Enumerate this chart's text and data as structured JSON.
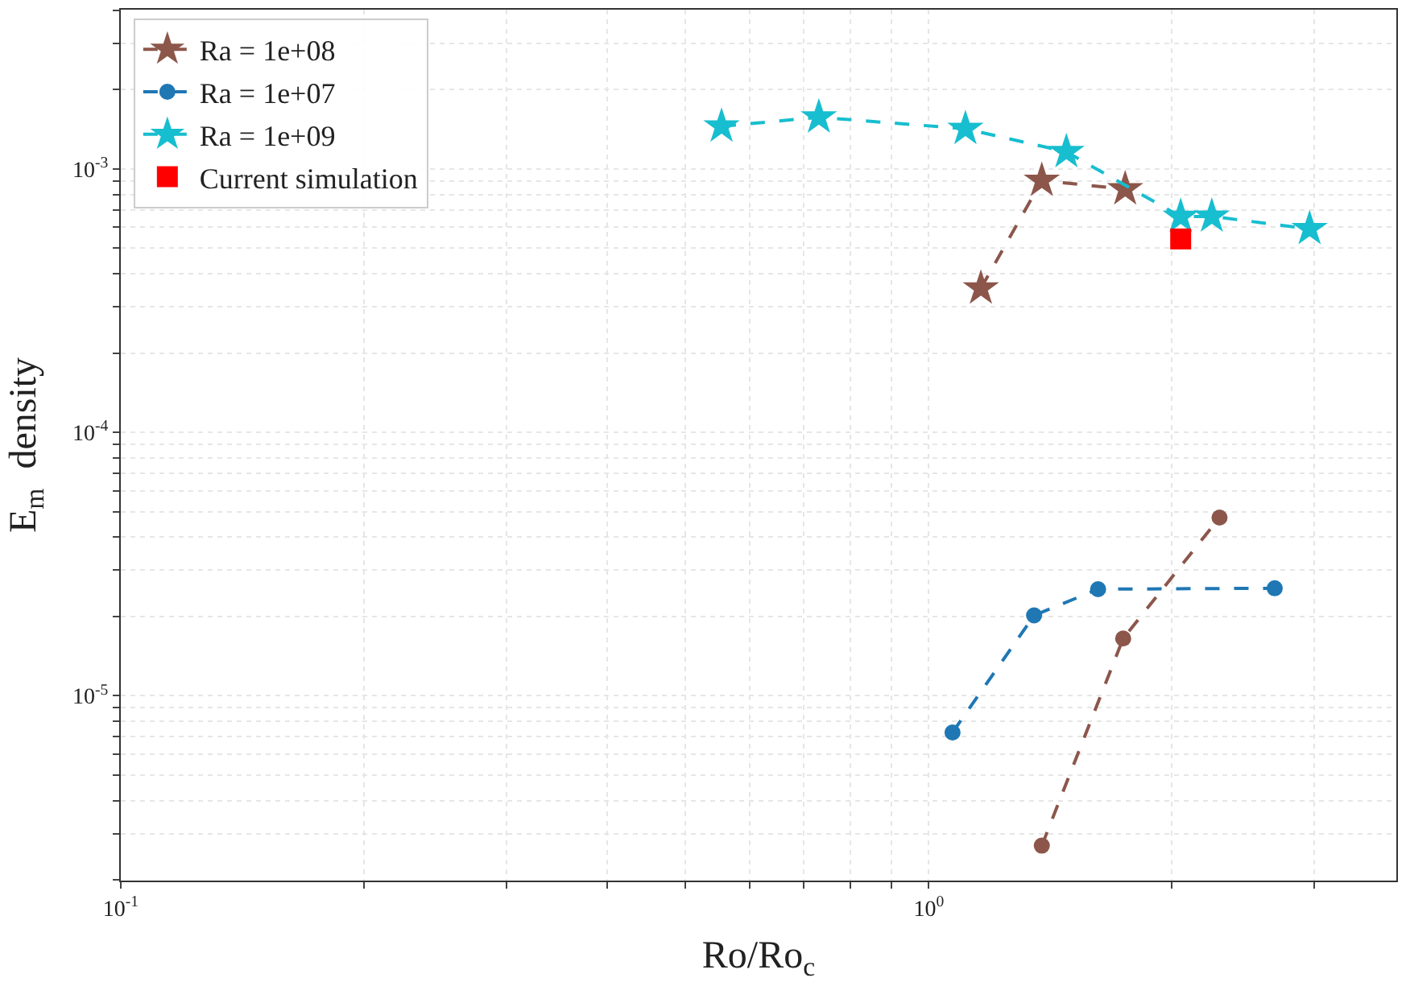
{
  "chart_data": {
    "type": "line",
    "xlabel": "Ro/Ro$_{c}$",
    "ylabel": "E$_{m}$  density",
    "log": "xy",
    "grid": true,
    "legend": "top left",
    "xlim": [
      0.1,
      3.79
    ],
    "ylim": [
      1.99e-06,
      0.00402
    ],
    "xticks": [
      {
        "value": 0.1,
        "label": "10$^{-1}$"
      },
      {
        "value": 0.2,
        "label": null
      },
      {
        "value": 0.3,
        "label": null
      },
      {
        "value": 0.4,
        "label": null
      },
      {
        "value": 0.5,
        "label": null
      },
      {
        "value": 0.6,
        "label": null
      },
      {
        "value": 0.7,
        "label": null
      },
      {
        "value": 0.8,
        "label": null
      },
      {
        "value": 0.9,
        "label": null
      },
      {
        "value": 1,
        "label": "10$^{0}$"
      },
      {
        "value": 2,
        "label": null
      },
      {
        "value": 3,
        "label": null
      }
    ],
    "yticks": [
      {
        "value": 2e-06,
        "label": null
      },
      {
        "value": 3e-06,
        "label": null
      },
      {
        "value": 4e-06,
        "label": null
      },
      {
        "value": 5e-06,
        "label": null
      },
      {
        "value": 6e-06,
        "label": null
      },
      {
        "value": 7e-06,
        "label": null
      },
      {
        "value": 8e-06,
        "label": null
      },
      {
        "value": 9e-06,
        "label": null
      },
      {
        "value": 1e-05,
        "label": "10$^{-5}$"
      },
      {
        "value": 2e-05,
        "label": null
      },
      {
        "value": 3e-05,
        "label": null
      },
      {
        "value": 4e-05,
        "label": null
      },
      {
        "value": 5e-05,
        "label": null
      },
      {
        "value": 6e-05,
        "label": null
      },
      {
        "value": 7e-05,
        "label": null
      },
      {
        "value": 8e-05,
        "label": null
      },
      {
        "value": 9e-05,
        "label": null
      },
      {
        "value": 0.0001,
        "label": "10$^{-4}$"
      },
      {
        "value": 0.0002,
        "label": null
      },
      {
        "value": 0.0003,
        "label": null
      },
      {
        "value": 0.0004,
        "label": null
      },
      {
        "value": 0.0005,
        "label": null
      },
      {
        "value": 0.0006,
        "label": null
      },
      {
        "value": 0.0007,
        "label": null
      },
      {
        "value": 0.0008,
        "label": null
      },
      {
        "value": 0.0009,
        "label": null
      },
      {
        "value": 0.001,
        "label": "10$^{-3}$"
      },
      {
        "value": 0.002,
        "label": null
      },
      {
        "value": 0.003,
        "label": null
      },
      {
        "value": 0.004,
        "label": null
      }
    ],
    "series": [
      {
        "name": "Ra = 1e+08",
        "color": "#8c564b",
        "marker": "star",
        "line_style": "dashed",
        "x": [
          1.16,
          1.38,
          1.75
        ],
        "values": [
          0.000352,
          0.000903,
          0.000838
        ]
      },
      {
        "name": "Ra = 1e+07",
        "color": "#1f77b4",
        "marker": "circle",
        "line_style": "dashed",
        "x": [
          1.07,
          1.35,
          1.62,
          2.68
        ],
        "values": [
          7.26e-06,
          2.02e-05,
          2.54e-05,
          2.56e-05
        ]
      },
      {
        "name": "Ra = 1e+09",
        "color": "#17becf",
        "marker": "star",
        "line_style": "dashed",
        "x": [
          0.554,
          0.731,
          1.11,
          1.48,
          2.05,
          2.24,
          2.96
        ],
        "values": [
          0.00145,
          0.00157,
          0.00142,
          0.00116,
          0.000659,
          0.00066,
          0.000592
        ]
      },
      {
        "name": "Current simulation",
        "color": "#ff0000",
        "type": "scatter",
        "marker": "square",
        "x": [
          2.05
        ],
        "values": [
          0.000542
        ]
      },
      {
        "color": "#8c564b",
        "marker": "circle",
        "line_style": "dashed",
        "x": [
          1.38,
          1.74,
          2.29
        ],
        "values": [
          2.7e-06,
          1.65e-05,
          4.75e-05
        ]
      }
    ]
  }
}
